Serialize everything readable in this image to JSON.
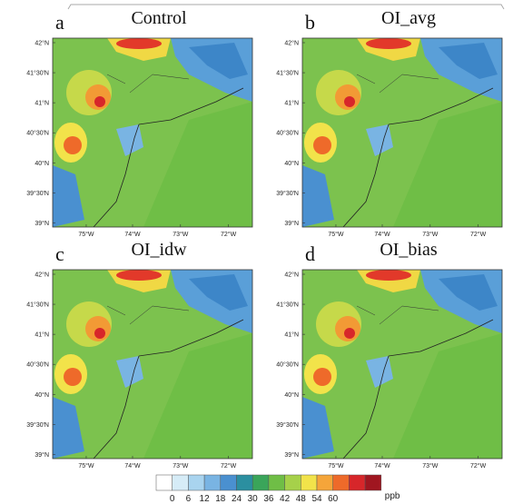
{
  "panels": [
    {
      "letter": "a",
      "title": "Control"
    },
    {
      "letter": "b",
      "title": "OI_avg"
    },
    {
      "letter": "c",
      "title": "OI_idw"
    },
    {
      "letter": "d",
      "title": "OI_bias"
    }
  ],
  "lat_labels": [
    "42°N",
    "41°30′N",
    "41°N",
    "40°30′N",
    "40°N",
    "39°30′N",
    "39°N"
  ],
  "lon_labels": [
    "75°W",
    "74°W",
    "73°W",
    "72°W"
  ],
  "colorbar": {
    "ticks": [
      0,
      6,
      12,
      18,
      24,
      30,
      36,
      42,
      48,
      54,
      60
    ],
    "unit": "ppb",
    "colors": [
      "#ffffff",
      "#d6ecf7",
      "#a9d4ef",
      "#79b4e3",
      "#4a90d0",
      "#2b8fa0",
      "#3aa55a",
      "#6fbe46",
      "#a6d14a",
      "#f2e34a",
      "#f5a53a",
      "#ee6a2a",
      "#d7262a",
      "#a01620"
    ]
  }
}
